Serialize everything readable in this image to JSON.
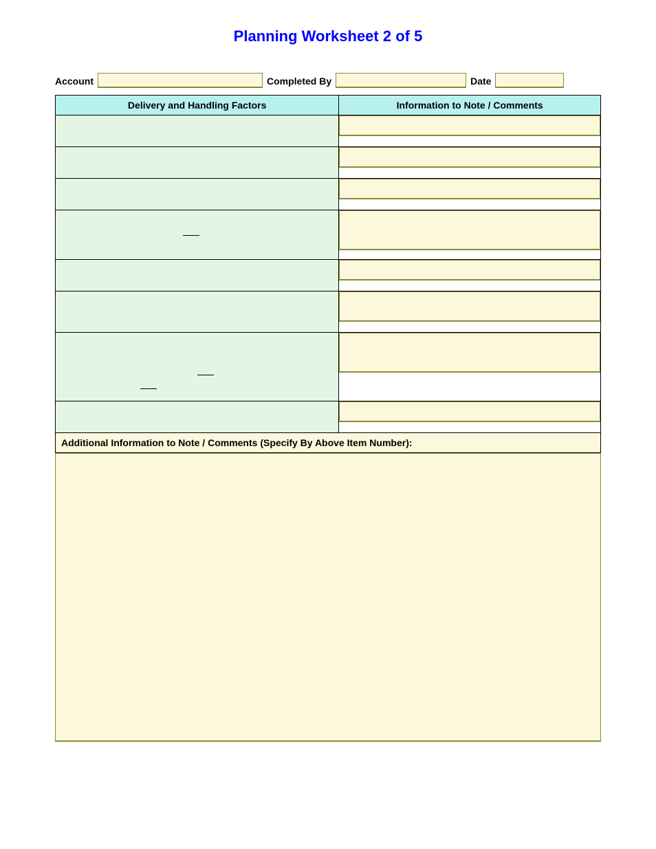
{
  "title": "Planning Worksheet 2 of 5",
  "header": {
    "account_label": "Account",
    "completed_by_label": "Completed By",
    "date_label": "Date",
    "account_value": "",
    "completed_by_value": "",
    "date_value": ""
  },
  "columns": {
    "left": "Delivery and Handling Factors",
    "right": "Information to Note / Comments"
  },
  "rows": [
    {
      "height": "h-sm",
      "comment_height": "cb-sm",
      "underlines": []
    },
    {
      "height": "h-sm",
      "comment_height": "cb-sm",
      "underlines": []
    },
    {
      "height": "h-sm",
      "comment_height": "cb-sm",
      "underlines": []
    },
    {
      "height": "h-lg",
      "comment_height": "cb-xl",
      "underlines": [
        {
          "left": "45%",
          "top": "50%"
        }
      ]
    },
    {
      "height": "h-sm",
      "comment_height": "cb-sm",
      "underlines": []
    },
    {
      "height": "h-md",
      "comment_height": "cb-md",
      "underlines": []
    },
    {
      "height": "h-xl",
      "comment_height": "cb-xl",
      "underlines": [
        {
          "left": "30%",
          "top": "82%"
        },
        {
          "left": "50%",
          "top": "62%"
        }
      ]
    },
    {
      "height": "h-sm",
      "comment_height": "cb-sm",
      "underlines": []
    }
  ],
  "additional_label": "Additional Information to Note / Comments (Specify By Above Item Number):",
  "colors": {
    "title": "#0000ff",
    "header_bg": "#b8f0f0",
    "factor_bg": "#e3f6e3",
    "input_bg": "#fbf8db",
    "input_border": "#8a8a3a",
    "page_bg": "#ffffff"
  }
}
